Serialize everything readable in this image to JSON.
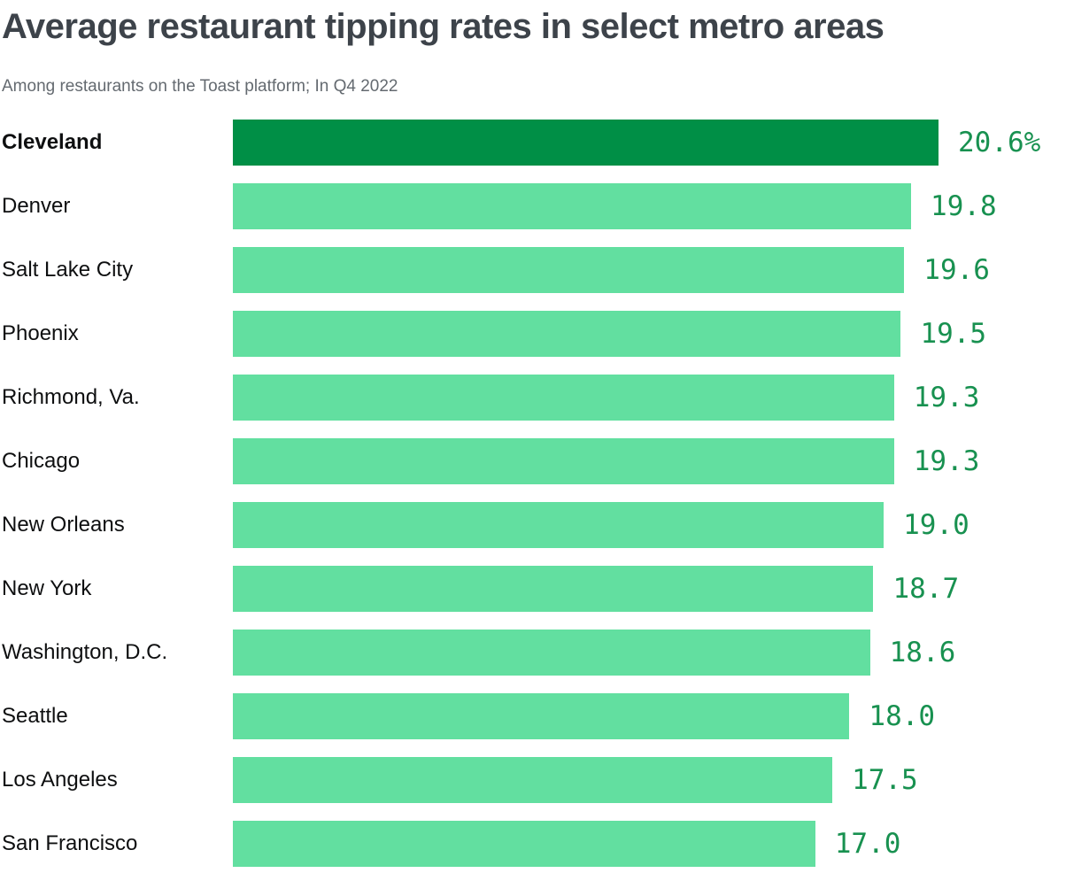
{
  "header": {
    "title": "Average restaurant tipping rates in select metro areas",
    "subtitle": "Among restaurants on the Toast platform; In Q4 2022"
  },
  "chart_data": {
    "type": "bar",
    "orientation": "horizontal",
    "title": "Average restaurant tipping rates in select metro areas",
    "subtitle": "Among restaurants on the Toast platform; In Q4 2022",
    "categories": [
      "Cleveland",
      "Denver",
      "Salt Lake City",
      "Phoenix",
      "Richmond, Va.",
      "Chicago",
      "New Orleans",
      "New York",
      "Washington, D.C.",
      "Seattle",
      "Los Angeles",
      "San Francisco"
    ],
    "values": [
      20.6,
      19.8,
      19.6,
      19.5,
      19.3,
      19.3,
      19.0,
      18.7,
      18.6,
      18.0,
      17.5,
      17.0
    ],
    "value_labels": [
      "20.6%",
      "19.8",
      "19.6",
      "19.5",
      "19.3",
      "19.3",
      "19.0",
      "18.7",
      "18.6",
      "18.0",
      "17.5",
      "17.0"
    ],
    "unit": "percent",
    "xlim": [
      0,
      20.6
    ],
    "grid": false,
    "legend": "none",
    "highlight_category": "Cleveland",
    "colors": {
      "bar": "#62dfa0",
      "bar_highlight": "#008f46",
      "value_text": "#189150",
      "label_text": "#0e0f10",
      "title_text": "#3d434a",
      "subtitle_text": "#646a70"
    }
  }
}
